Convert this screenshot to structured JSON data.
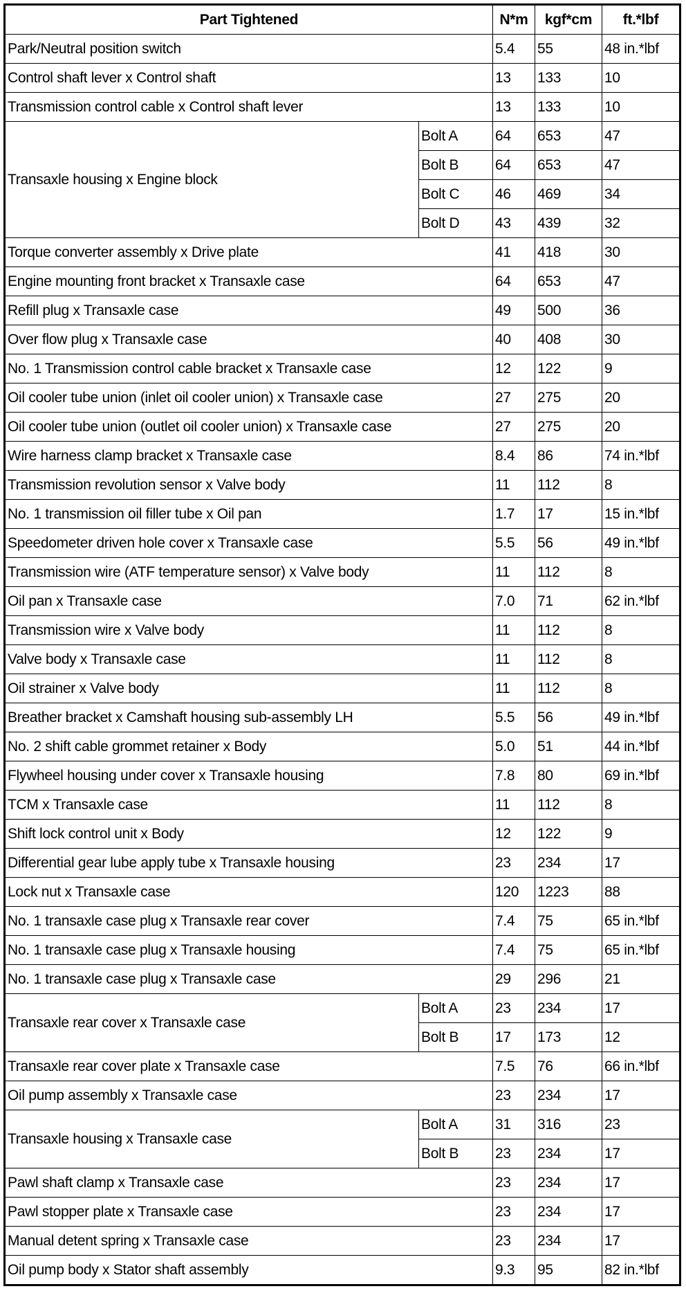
{
  "header": {
    "part": "Part Tightened",
    "nm": "N*m",
    "kgf": "kgf*cm",
    "ft": "ft.*lbf"
  },
  "rows": [
    {
      "part": "Park/Neutral position switch",
      "items": [
        {
          "bolt": "",
          "nm": "5.4",
          "kgf": "55",
          "ft": "48 in.*lbf"
        }
      ]
    },
    {
      "part": "Control shaft lever x Control shaft",
      "items": [
        {
          "bolt": "",
          "nm": "13",
          "kgf": "133",
          "ft": "10"
        }
      ]
    },
    {
      "part": "Transmission control cable x Control shaft lever",
      "items": [
        {
          "bolt": "",
          "nm": "13",
          "kgf": "133",
          "ft": "10"
        }
      ]
    },
    {
      "part": "Transaxle housing x Engine block",
      "items": [
        {
          "bolt": "Bolt A",
          "nm": "64",
          "kgf": "653",
          "ft": "47"
        },
        {
          "bolt": "Bolt B",
          "nm": "64",
          "kgf": "653",
          "ft": "47"
        },
        {
          "bolt": "Bolt C",
          "nm": "46",
          "kgf": "469",
          "ft": "34"
        },
        {
          "bolt": "Bolt D",
          "nm": "43",
          "kgf": "439",
          "ft": "32"
        }
      ]
    },
    {
      "part": "Torque converter assembly x Drive plate",
      "items": [
        {
          "bolt": "",
          "nm": "41",
          "kgf": "418",
          "ft": "30"
        }
      ]
    },
    {
      "part": "Engine mounting front bracket x Transaxle case",
      "items": [
        {
          "bolt": "",
          "nm": "64",
          "kgf": "653",
          "ft": "47"
        }
      ]
    },
    {
      "part": "Refill plug x Transaxle case",
      "items": [
        {
          "bolt": "",
          "nm": "49",
          "kgf": "500",
          "ft": "36"
        }
      ]
    },
    {
      "part": "Over flow plug x Transaxle case",
      "items": [
        {
          "bolt": "",
          "nm": "40",
          "kgf": "408",
          "ft": "30"
        }
      ]
    },
    {
      "part": "No. 1 Transmission control cable bracket x Transaxle case",
      "items": [
        {
          "bolt": "",
          "nm": "12",
          "kgf": "122",
          "ft": "9"
        }
      ]
    },
    {
      "part": "Oil cooler tube union (inlet oil cooler union) x Transaxle case",
      "items": [
        {
          "bolt": "",
          "nm": "27",
          "kgf": "275",
          "ft": "20"
        }
      ]
    },
    {
      "part": "Oil cooler tube union (outlet oil cooler union) x Transaxle case",
      "items": [
        {
          "bolt": "",
          "nm": "27",
          "kgf": "275",
          "ft": "20"
        }
      ]
    },
    {
      "part": "Wire harness clamp bracket x Transaxle case",
      "items": [
        {
          "bolt": "",
          "nm": "8.4",
          "kgf": "86",
          "ft": "74 in.*lbf"
        }
      ]
    },
    {
      "part": "Transmission revolution sensor x Valve body",
      "items": [
        {
          "bolt": "",
          "nm": "11",
          "kgf": "112",
          "ft": "8"
        }
      ]
    },
    {
      "part": "No. 1 transmission oil filler tube x Oil pan",
      "items": [
        {
          "bolt": "",
          "nm": "1.7",
          "kgf": "17",
          "ft": "15 in.*lbf"
        }
      ]
    },
    {
      "part": "Speedometer driven hole cover x Transaxle case",
      "items": [
        {
          "bolt": "",
          "nm": "5.5",
          "kgf": "56",
          "ft": "49 in.*lbf"
        }
      ]
    },
    {
      "part": "Transmission wire (ATF temperature sensor) x Valve body",
      "items": [
        {
          "bolt": "",
          "nm": "11",
          "kgf": "112",
          "ft": "8"
        }
      ]
    },
    {
      "part": "Oil pan x Transaxle case",
      "items": [
        {
          "bolt": "",
          "nm": "7.0",
          "kgf": "71",
          "ft": "62 in.*lbf"
        }
      ]
    },
    {
      "part": "Transmission wire x Valve body",
      "items": [
        {
          "bolt": "",
          "nm": "11",
          "kgf": "112",
          "ft": "8"
        }
      ]
    },
    {
      "part": "Valve body x Transaxle case",
      "items": [
        {
          "bolt": "",
          "nm": "11",
          "kgf": "112",
          "ft": "8"
        }
      ]
    },
    {
      "part": "Oil strainer x Valve body",
      "items": [
        {
          "bolt": "",
          "nm": "11",
          "kgf": "112",
          "ft": "8"
        }
      ]
    },
    {
      "part": "Breather bracket x Camshaft housing sub-assembly LH",
      "items": [
        {
          "bolt": "",
          "nm": "5.5",
          "kgf": "56",
          "ft": "49 in.*lbf"
        }
      ]
    },
    {
      "part": "No. 2 shift cable grommet retainer x Body",
      "items": [
        {
          "bolt": "",
          "nm": "5.0",
          "kgf": "51",
          "ft": "44 in.*lbf"
        }
      ]
    },
    {
      "part": "Flywheel housing under cover x Transaxle housing",
      "items": [
        {
          "bolt": "",
          "nm": "7.8",
          "kgf": "80",
          "ft": "69 in.*lbf"
        }
      ]
    },
    {
      "part": "TCM x Transaxle case",
      "items": [
        {
          "bolt": "",
          "nm": "11",
          "kgf": "112",
          "ft": "8"
        }
      ]
    },
    {
      "part": "Shift lock control unit x Body",
      "items": [
        {
          "bolt": "",
          "nm": "12",
          "kgf": "122",
          "ft": "9"
        }
      ]
    },
    {
      "part": "Differential gear lube apply tube x Transaxle housing",
      "items": [
        {
          "bolt": "",
          "nm": "23",
          "kgf": "234",
          "ft": "17"
        }
      ]
    },
    {
      "part": "Lock nut x Transaxle case",
      "items": [
        {
          "bolt": "",
          "nm": "120",
          "kgf": "1223",
          "ft": "88"
        }
      ]
    },
    {
      "part": "No. 1 transaxle case plug x Transaxle rear cover",
      "items": [
        {
          "bolt": "",
          "nm": "7.4",
          "kgf": "75",
          "ft": "65 in.*lbf"
        }
      ]
    },
    {
      "part": "No. 1 transaxle case plug x Transaxle housing",
      "items": [
        {
          "bolt": "",
          "nm": "7.4",
          "kgf": "75",
          "ft": "65 in.*lbf"
        }
      ]
    },
    {
      "part": "No. 1 transaxle case plug x Transaxle case",
      "items": [
        {
          "bolt": "",
          "nm": "29",
          "kgf": "296",
          "ft": "21"
        }
      ]
    },
    {
      "part": "Transaxle rear cover x Transaxle case",
      "items": [
        {
          "bolt": "Bolt A",
          "nm": "23",
          "kgf": "234",
          "ft": "17"
        },
        {
          "bolt": "Bolt B",
          "nm": "17",
          "kgf": "173",
          "ft": "12"
        }
      ]
    },
    {
      "part": "Transaxle rear cover plate x Transaxle case",
      "items": [
        {
          "bolt": "",
          "nm": "7.5",
          "kgf": "76",
          "ft": "66 in.*lbf"
        }
      ]
    },
    {
      "part": "Oil pump assembly x Transaxle case",
      "items": [
        {
          "bolt": "",
          "nm": "23",
          "kgf": "234",
          "ft": "17"
        }
      ]
    },
    {
      "part": "Transaxle housing x Transaxle case",
      "items": [
        {
          "bolt": "Bolt A",
          "nm": "31",
          "kgf": "316",
          "ft": "23"
        },
        {
          "bolt": "Bolt B",
          "nm": "23",
          "kgf": "234",
          "ft": "17"
        }
      ]
    },
    {
      "part": "Pawl shaft clamp x Transaxle case",
      "items": [
        {
          "bolt": "",
          "nm": "23",
          "kgf": "234",
          "ft": "17"
        }
      ]
    },
    {
      "part": "Pawl stopper plate x Transaxle case",
      "items": [
        {
          "bolt": "",
          "nm": "23",
          "kgf": "234",
          "ft": "17"
        }
      ]
    },
    {
      "part": "Manual detent spring x Transaxle case",
      "items": [
        {
          "bolt": "",
          "nm": "23",
          "kgf": "234",
          "ft": "17"
        }
      ]
    },
    {
      "part": "Oil pump body x Stator shaft assembly",
      "items": [
        {
          "bolt": "",
          "nm": "9.3",
          "kgf": "95",
          "ft": "82 in.*lbf"
        }
      ]
    }
  ]
}
